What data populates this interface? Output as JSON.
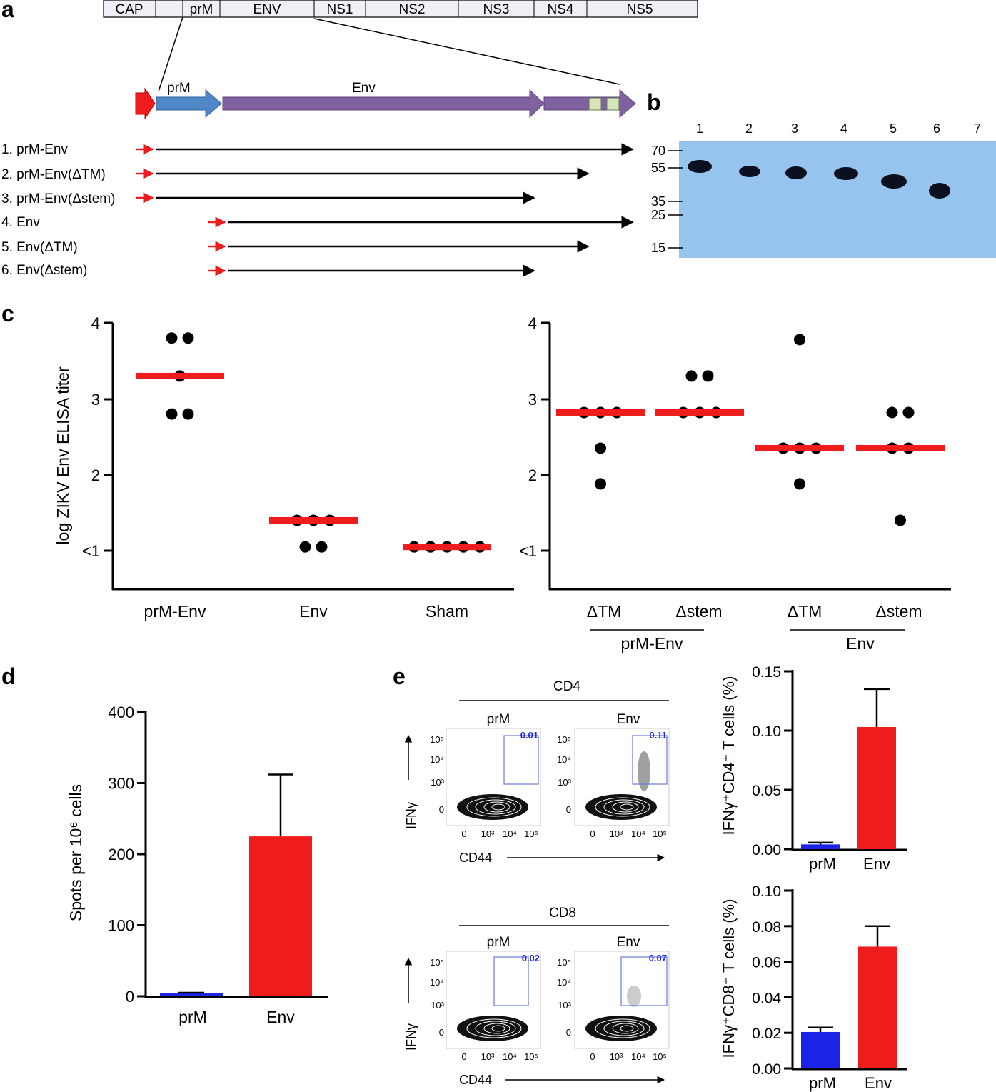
{
  "panels": {
    "a": "a",
    "b": "b",
    "c": "c",
    "d": "d",
    "e": "e"
  },
  "genome": [
    "CAP",
    "",
    "prM",
    "ENV",
    "NS1",
    "NS2",
    "NS3",
    "NS4",
    "NS5"
  ],
  "gene": {
    "prm": "prM",
    "env": "Env"
  },
  "constructs": [
    "1. prM-Env",
    "2. prM-Env(ΔTM)",
    "3. prM-Env(Δstem)",
    "4. Env",
    "5. Env(ΔTM)",
    "6. Env(Δstem)"
  ],
  "colors": {
    "red": "#ee1c1c",
    "blue": "#1a23e6",
    "prm_arrow": "#4f87c9",
    "env_arrow": "#7f629f",
    "tm_box": "#d6e4b9",
    "blot": "#97c3ef"
  },
  "blot": {
    "lanes": [
      "1",
      "2",
      "3",
      "4",
      "5",
      "6",
      "7"
    ],
    "markers": [
      "70",
      "55",
      "35",
      "25",
      "15"
    ]
  },
  "chart_data": [
    {
      "id": "c-left",
      "type": "scatter",
      "ylabel": "log ZIKV Env ELISA titer",
      "ytick_labels": [
        "<1",
        "2",
        "3",
        "4"
      ],
      "ylim": [
        0.5,
        4
      ],
      "categories": [
        "prM-Env",
        "Env",
        "Sham"
      ],
      "points": [
        [
          3.8,
          3.8,
          3.3,
          2.8,
          2.8
        ],
        [
          1.4,
          1.4,
          1.4,
          1.05,
          1.05
        ],
        [
          1.05,
          1.05,
          1.05,
          1.05,
          1.05
        ]
      ],
      "medians": [
        3.3,
        1.4,
        1.05
      ]
    },
    {
      "id": "c-right",
      "type": "scatter",
      "ytick_labels": [
        "<1",
        "2",
        "3",
        "4"
      ],
      "ylim": [
        0.5,
        4
      ],
      "categories": [
        "ΔTM",
        "Δstem",
        "ΔTM",
        "Δstem"
      ],
      "groups": [
        "prM-Env",
        "Env"
      ],
      "points": [
        [
          2.82,
          2.82,
          2.82,
          2.35,
          1.88
        ],
        [
          3.3,
          3.3,
          2.82,
          2.82,
          2.82
        ],
        [
          3.78,
          2.35,
          2.35,
          2.35,
          1.88
        ],
        [
          2.82,
          2.82,
          2.35,
          2.35,
          1.4
        ]
      ],
      "medians": [
        2.82,
        2.82,
        2.35,
        2.35
      ]
    },
    {
      "id": "d",
      "type": "bar",
      "ylabel": "Spots per 10⁶ cells",
      "categories": [
        "prM",
        "Env"
      ],
      "values": [
        4,
        225
      ],
      "errors": [
        1,
        87
      ],
      "yticks": [
        "0",
        "100",
        "200",
        "300",
        "400"
      ],
      "ylim": [
        0,
        400
      ]
    },
    {
      "id": "e-cd4",
      "type": "bar",
      "ylabel": "IFNγ⁺CD4⁺ T cells (%)",
      "categories": [
        "prM",
        "Env"
      ],
      "values": [
        0.004,
        0.103
      ],
      "errors": [
        0.0015,
        0.032
      ],
      "yticks": [
        "0.00",
        "0.05",
        "0.10",
        "0.15"
      ],
      "ylim": [
        0,
        0.15
      ]
    },
    {
      "id": "e-cd8",
      "type": "bar",
      "ylabel": "IFNγ⁺CD8⁺ T cells (%)",
      "categories": [
        "prM",
        "Env"
      ],
      "values": [
        0.0205,
        0.0685
      ],
      "errors": [
        0.0025,
        0.0115
      ],
      "yticks": [
        "0.00",
        "0.02",
        "0.04",
        "0.06",
        "0.08",
        "0.10"
      ],
      "ylim": [
        0,
        0.1
      ]
    }
  ],
  "flow": {
    "cd4": {
      "title": "CD4",
      "prm_label": "prM",
      "env_label": "Env",
      "prm_gate": "0.01",
      "env_gate": "0.11"
    },
    "cd8": {
      "title": "CD8",
      "prm_label": "prM",
      "env_label": "Env",
      "prm_gate": "0.02",
      "env_gate": "0.07"
    },
    "y_axis_label": "IFNγ",
    "x_axis_label": "CD44",
    "y_ticks": [
      "10⁵",
      "10⁴",
      "10³",
      "0"
    ],
    "x_ticks": [
      "0",
      "10³",
      "10⁴",
      "10⁵"
    ]
  }
}
